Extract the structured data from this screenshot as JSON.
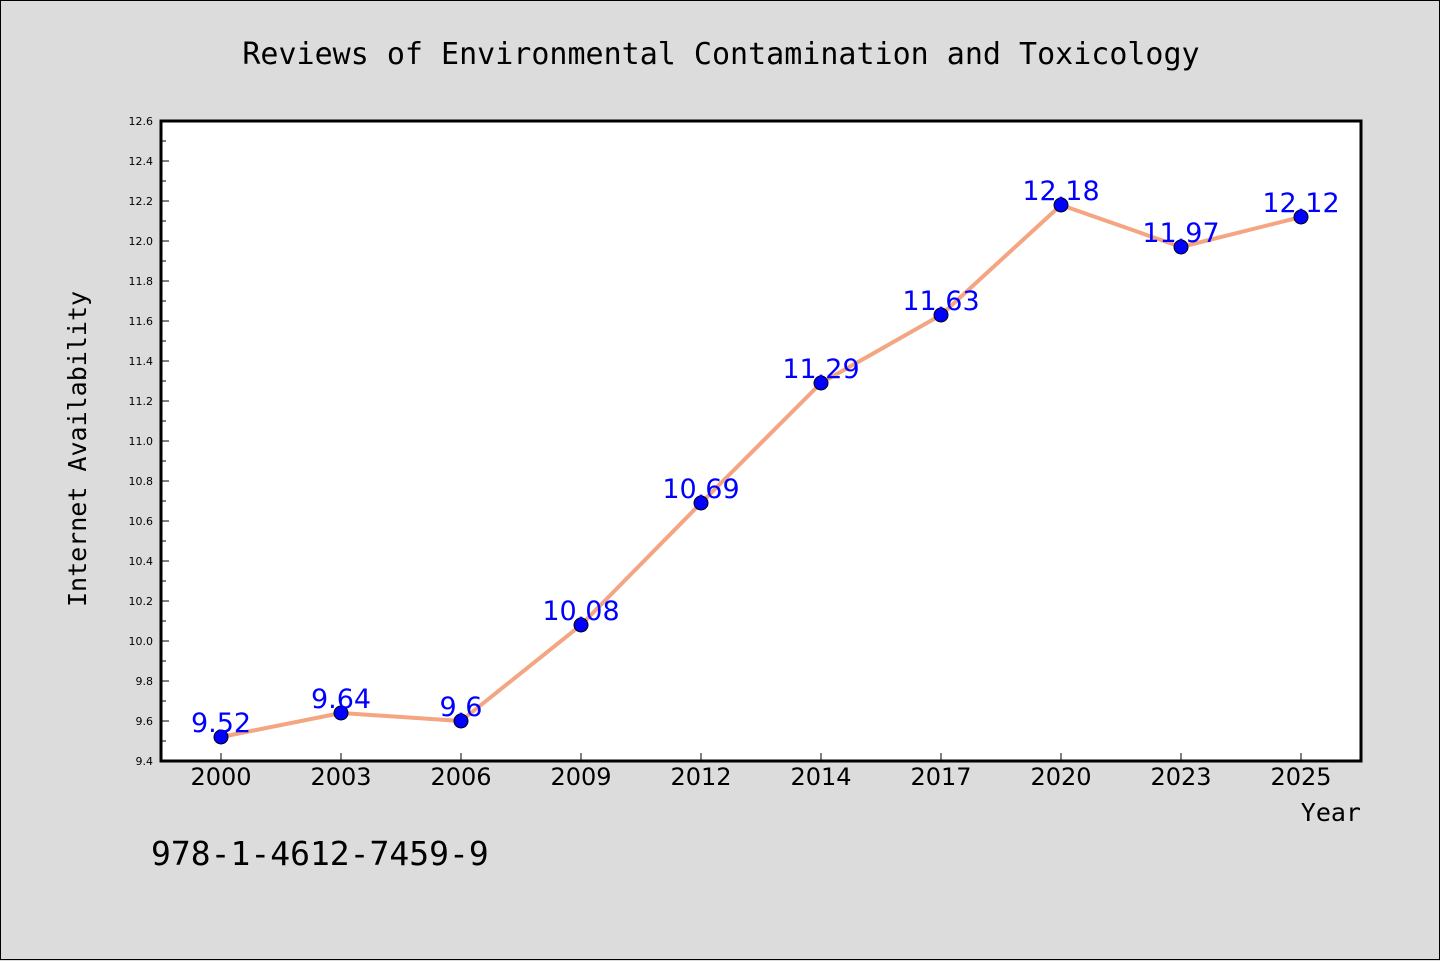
{
  "chart_data": {
    "type": "line",
    "title": "Reviews of Environmental Contamination and Toxicology",
    "xlabel": "Year",
    "ylabel": "Internet Availability",
    "categories": [
      "2000",
      "2003",
      "2006",
      "2009",
      "2012",
      "2014",
      "2017",
      "2020",
      "2023",
      "2025"
    ],
    "series": [
      {
        "values": [
          9.52,
          9.64,
          9.6,
          10.08,
          10.69,
          11.29,
          11.63,
          12.18,
          11.97,
          12.12
        ],
        "data_labels": [
          "9.52",
          "9.64",
          "9.6",
          "10.08",
          "10.69",
          "11.29",
          "11.63",
          "12.18",
          "11.97",
          "12.12"
        ]
      }
    ],
    "ylim": [
      9.4,
      12.6
    ],
    "yticks": [
      "9.4",
      "9.6",
      "9.8",
      "10.0",
      "10.2",
      "10.4",
      "10.6",
      "10.8",
      "11.0",
      "11.2",
      "11.4",
      "11.6",
      "11.8",
      "12.0",
      "12.2",
      "12.4",
      "12.6"
    ],
    "grid": false,
    "legend": "none",
    "colors": {
      "line": "#f4a582",
      "marker": "#0000ff",
      "label": "#0000ff",
      "background": "#dcdcdc",
      "plot_background": "#ffffff"
    }
  },
  "footer": {
    "text": "978-1-4612-7459-9"
  }
}
